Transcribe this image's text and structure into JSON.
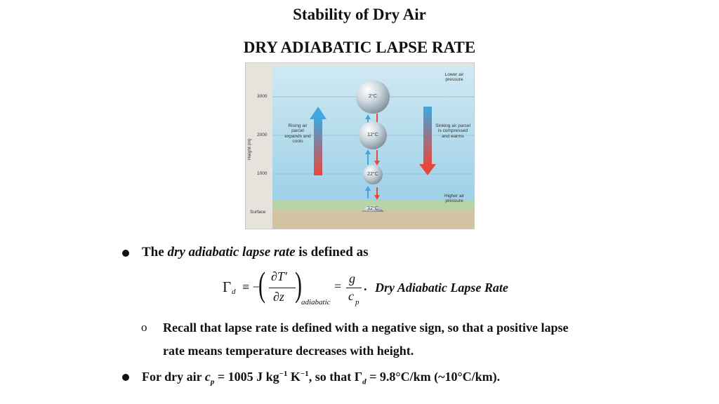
{
  "title": "Stability of Dry Air",
  "subtitle": "DRY ADIABATIC LAPSE RATE",
  "diagram": {
    "y_axis_label": "Height (m)",
    "ticks": [
      "3000",
      "2000",
      "1000",
      "Surface"
    ],
    "top_right_label": "Lower air pressure",
    "bottom_right_label": "Higher air pressure",
    "left_note": "Rising air parcel expands and cools",
    "right_note": "Sinking air parcel is compressed and warms",
    "balloons": [
      "2°C",
      "12°C",
      "22°C",
      "32°C"
    ],
    "colors": {
      "sky_top": "#bfe1ee",
      "sky_bottom": "#9fcfe6",
      "ground": "#cdbfa0",
      "warm": "#e8473b",
      "cool": "#3fa7de"
    }
  },
  "bullet1": {
    "text_prefix": "The ",
    "text_italic": "dry adiabatic lapse rate",
    "text_suffix": " is defined as"
  },
  "equation": {
    "gamma": "Γ",
    "gamma_sub": "d",
    "equiv": "≡ −",
    "numerator": "∂T′",
    "denominator": "∂z",
    "subscript": "adiabatic",
    "equals": "=",
    "g": "g",
    "cp": "c",
    "cp_sub": "p",
    "dot": ".",
    "name": "Dry Adiabatic Lapse Rate"
  },
  "sub_bullet": {
    "marker": "o",
    "line1": "Recall that lapse rate is defined with a negative sign, so that a positive lapse",
    "line2": "rate means temperature decreases with height."
  },
  "bullet2": {
    "prefix": "For dry air ",
    "cp": "c",
    "cp_sub": "p",
    "value": " = 1005 J kg",
    "exp1": "−1",
    "k": " K",
    "exp2": "−1",
    "mid": ", so that ",
    "gamma": "Γ",
    "gamma_sub": "d",
    "result": " = 9.8°C/km (~10°C/km)."
  }
}
